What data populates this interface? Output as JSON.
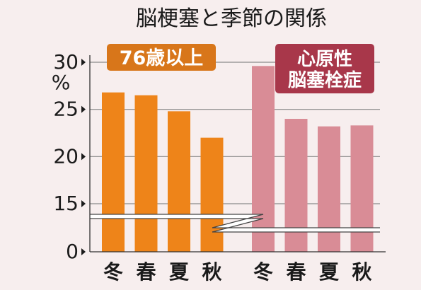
{
  "chart_data": {
    "type": "bar",
    "title": "脳梗塞と季節の関係",
    "ylabel": "%",
    "ylim": [
      0,
      30
    ],
    "axis_break": [
      0,
      12
    ],
    "yticks": [
      0,
      15,
      20,
      25,
      30
    ],
    "grid": "horizontal",
    "groups": [
      {
        "name": "76歳以上",
        "color": "#ee8419",
        "categories": [
          "冬",
          "春",
          "夏",
          "秋"
        ],
        "values": [
          26.8,
          26.5,
          24.8,
          22.0
        ]
      },
      {
        "name": "心原性脳塞栓症",
        "color": "#d98c96",
        "categories": [
          "冬",
          "春",
          "夏",
          "秋"
        ],
        "values": [
          29.6,
          24.0,
          23.2,
          23.3
        ]
      }
    ]
  },
  "colors": {
    "background": "#f7eeee",
    "orange_label": "#d8761a",
    "red_label": "#a8374a",
    "text": "#1a1a1a"
  }
}
